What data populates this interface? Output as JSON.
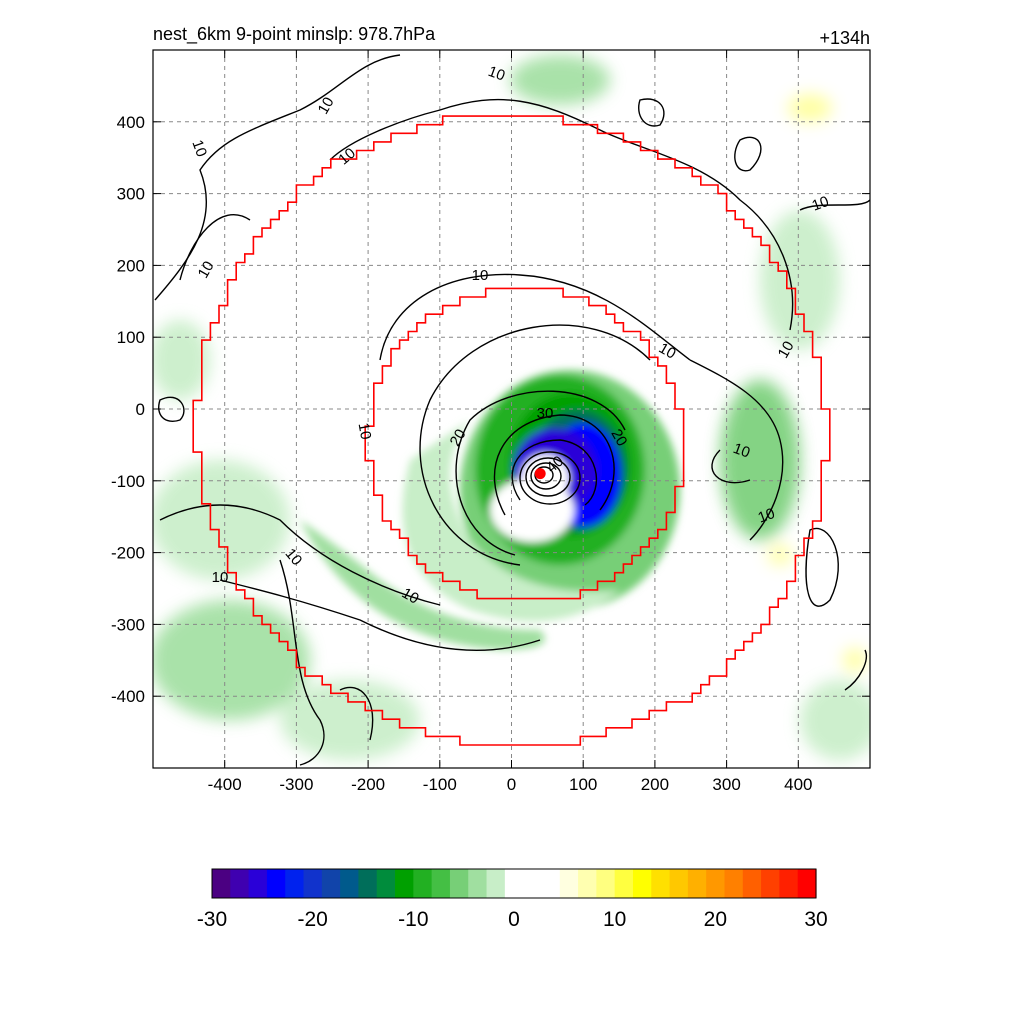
{
  "chart_data": {
    "type": "heatmap",
    "title": "nest_6km  9-point minslp: 978.7hPa",
    "time_label": "+134h",
    "xlim": [
      -500,
      500
    ],
    "ylim": [
      -500,
      500
    ],
    "xticks": [
      -400,
      -300,
      -200,
      -100,
      0,
      100,
      200,
      300,
      400
    ],
    "yticks": [
      -400,
      -300,
      -200,
      -100,
      0,
      100,
      200,
      300,
      400
    ],
    "grid": true,
    "colorbar": {
      "ticks": [
        -30,
        -20,
        -10,
        0,
        10,
        20,
        30
      ],
      "range": [
        -30,
        30
      ],
      "colors": [
        "#4b0082",
        "#3f00b0",
        "#2a00d8",
        "#0000ff",
        "#0022ee",
        "#1133cc",
        "#1144aa",
        "#005a8c",
        "#006e5a",
        "#008c3c",
        "#00a000",
        "#22b022",
        "#44bf44",
        "#77cf77",
        "#a0dfa0",
        "#c8eec8",
        "#ffffff",
        "#ffffff",
        "#ffffff",
        "#ffffe0",
        "#ffffb0",
        "#ffff80",
        "#ffff40",
        "#ffff00",
        "#ffe000",
        "#ffc800",
        "#ffb000",
        "#ff9800",
        "#ff8000",
        "#ff6000",
        "#ff4000",
        "#ff2000",
        "#ff0000"
      ]
    },
    "contour_labels": [
      "10",
      "10",
      "10",
      "10",
      "10",
      "10",
      "10",
      "10",
      "10",
      "10",
      "10",
      "10",
      "10",
      "10",
      "10",
      "20",
      "20",
      "30",
      "40"
    ],
    "storm_center": {
      "x": 40,
      "y": -90
    },
    "nest_boundaries": [
      {
        "name": "outer",
        "center": [
          0,
          -30
        ],
        "radius": 440
      },
      {
        "name": "inner",
        "center": [
          20,
          -50
        ],
        "radius": 220
      }
    ]
  }
}
